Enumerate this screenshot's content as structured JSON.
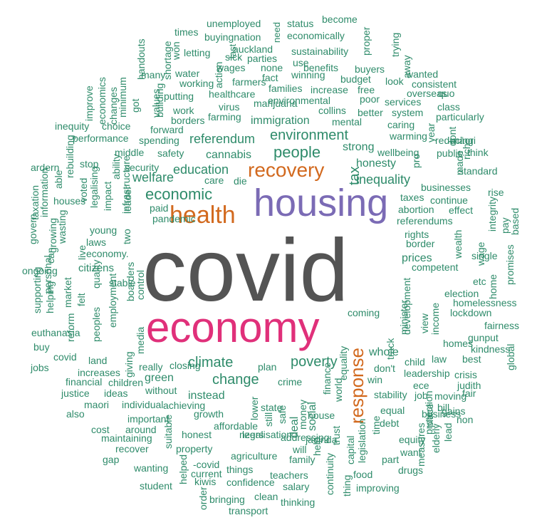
{
  "colors": {
    "default": "#2e8b6a",
    "covid": "#545454",
    "housing": "#7b6bb5",
    "economy": "#e0307a",
    "accent": "#d2691e"
  },
  "featured": {
    "covid": "covid",
    "housing": "housing",
    "economy": "economy",
    "health": "health",
    "recovery": "recovery",
    "response": "response"
  },
  "words": [
    "unemployed",
    "status",
    "become",
    "times",
    "buyingnation",
    "need",
    "economically",
    "proper",
    "trying",
    "won",
    "letting",
    "last",
    "auckland",
    "sustainability",
    "away",
    "handouts",
    "shortage",
    "sick",
    "parties",
    "wages",
    "none",
    "use",
    "benefits",
    "buyers",
    "action",
    "fact",
    "winning",
    "budget",
    "water",
    "working",
    "farmers",
    "look",
    "wanted",
    "consistent",
    "many",
    "healthcare",
    "families",
    "increase",
    "free",
    "poor",
    "overseas",
    "quo",
    "values",
    "putting",
    "virus",
    "marijuana",
    "environmental",
    "services",
    "economics",
    "building",
    "work",
    "collins",
    "better",
    "system",
    "class",
    "improve",
    "minimum",
    "changes",
    "got",
    "borders",
    "farming",
    "mental",
    "caring",
    "particularly",
    "inequity",
    "choice",
    "forward",
    "immigration",
    "warming",
    "dont",
    "year",
    "reducing",
    "performance",
    "spending",
    "referendum",
    "environment",
    "strong",
    "māori",
    "think",
    "rich",
    "security",
    "safety",
    "wellbeing",
    "pro",
    "public",
    "middle",
    "ardern",
    "rebuilding",
    "stop",
    "ability",
    "cannabis",
    "people",
    "honesty",
    "made",
    "standard",
    "taxation",
    "able",
    "voted",
    "legalising",
    "infrastructure",
    "education",
    "care",
    "tax",
    "inequality",
    "businesses",
    "rise",
    "information",
    "houses",
    "impact",
    "welfare",
    "die",
    "taxes",
    "continue",
    "govern",
    "leader",
    "economic",
    "abortion",
    "effect",
    "integrity",
    "wasting",
    "two",
    "paid",
    "referendums",
    "pandemic",
    "pay",
    "based",
    "growing",
    "young",
    "laws",
    "rights",
    "border",
    "wage",
    "ongoing",
    "can",
    "live",
    "economy.",
    "prices",
    "wealth",
    "single",
    "promises",
    "personal",
    "citizens",
    "competent",
    "supporting",
    "helping",
    "quality",
    "stable",
    "etc",
    "election",
    "market",
    "boarders",
    "control",
    "home",
    "felt",
    "homelessness",
    "lockdown",
    "reform",
    "peoples",
    "development",
    "view",
    "euthanasia",
    "employment",
    "coming",
    "fairness",
    "buy",
    "giving",
    "media",
    "minister",
    "income",
    "gunput",
    "covid",
    "track",
    "homes",
    "jobs",
    "land",
    "whole",
    "kindness",
    "global",
    "financial",
    "increases",
    "really",
    "closing",
    "plan",
    "child",
    "law",
    "best",
    "green",
    "don't",
    "leadership",
    "crisis",
    "justice",
    "ideas",
    "children",
    "without",
    "crime",
    "equality",
    "win",
    "ece",
    "judith",
    "maori",
    "individual",
    "instead",
    "finance",
    "stability",
    "job",
    "moving",
    "fair",
    "also",
    "achieving",
    "state",
    "still",
    "world",
    "bill",
    "growth",
    "equal",
    "business",
    "gains",
    "cost",
    "around",
    "lower",
    "safe",
    "deal",
    "money",
    "social",
    "place",
    "non",
    "maintaining",
    "important",
    "affordable",
    "debt",
    "gap",
    "suitable",
    "honest",
    "legalisation",
    "nzers",
    "house",
    "jacinda",
    "time",
    "protection",
    "lead",
    "recover",
    "property",
    "addressing",
    "trust",
    "equity",
    "elderly",
    "measures",
    "wanting",
    "agriculture",
    "family",
    "help",
    "want",
    "helped",
    "-covid",
    "things",
    "will",
    "capital",
    "legislation",
    "part",
    "student",
    "current",
    "teachers",
    "drugs",
    "kiwis",
    "confidence",
    "thing",
    "food",
    "order",
    "bringing",
    "continuity",
    "improving",
    "clean",
    "salary",
    "thinking",
    "transport",
    "poverty",
    "change",
    "climate"
  ]
}
